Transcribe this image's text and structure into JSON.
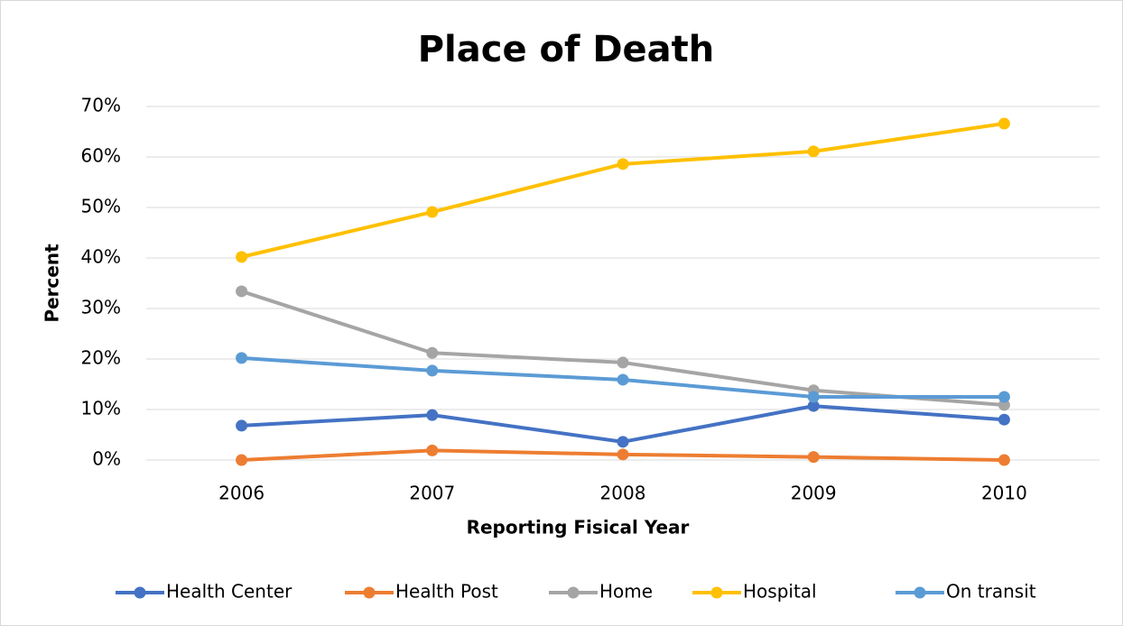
{
  "chart_data": {
    "type": "line",
    "title": "Place of Death",
    "x_label": "Reporting Fisical Year",
    "y_label": "Percent",
    "categories": [
      "2006",
      "2007",
      "2008",
      "2009",
      "2010"
    ],
    "series": [
      {
        "name": "Health Center",
        "color": "#4472c4",
        "values": [
          6.8,
          8.9,
          3.6,
          10.7,
          8.0
        ]
      },
      {
        "name": "Health Post",
        "color": "#ed7d31",
        "values": [
          0,
          1.9,
          1.1,
          0.6,
          0
        ]
      },
      {
        "name": "Home",
        "color": "#a5a5a5",
        "values": [
          33.4,
          21.2,
          19.3,
          13.8,
          10.9
        ]
      },
      {
        "name": "Hospital",
        "color": "#ffc000",
        "values": [
          40.2,
          49.1,
          58.6,
          61.1,
          66.6
        ]
      },
      {
        "name": "On transit",
        "color": "#5b9bd5",
        "values": [
          20.2,
          17.7,
          15.9,
          12.5,
          12.5
        ]
      }
    ],
    "ylim": [
      0,
      70
    ],
    "yticks": [
      {
        "value": 0,
        "label": "0%"
      },
      {
        "value": 10,
        "label": "10%"
      },
      {
        "value": 20,
        "label": "20%"
      },
      {
        "value": 30,
        "label": "30%"
      },
      {
        "value": 40,
        "label": "40%"
      },
      {
        "value": 50,
        "label": "50%"
      },
      {
        "value": 60,
        "label": "60%"
      },
      {
        "value": 70,
        "label": "70%"
      }
    ],
    "grid": true,
    "legend": "bottom"
  }
}
